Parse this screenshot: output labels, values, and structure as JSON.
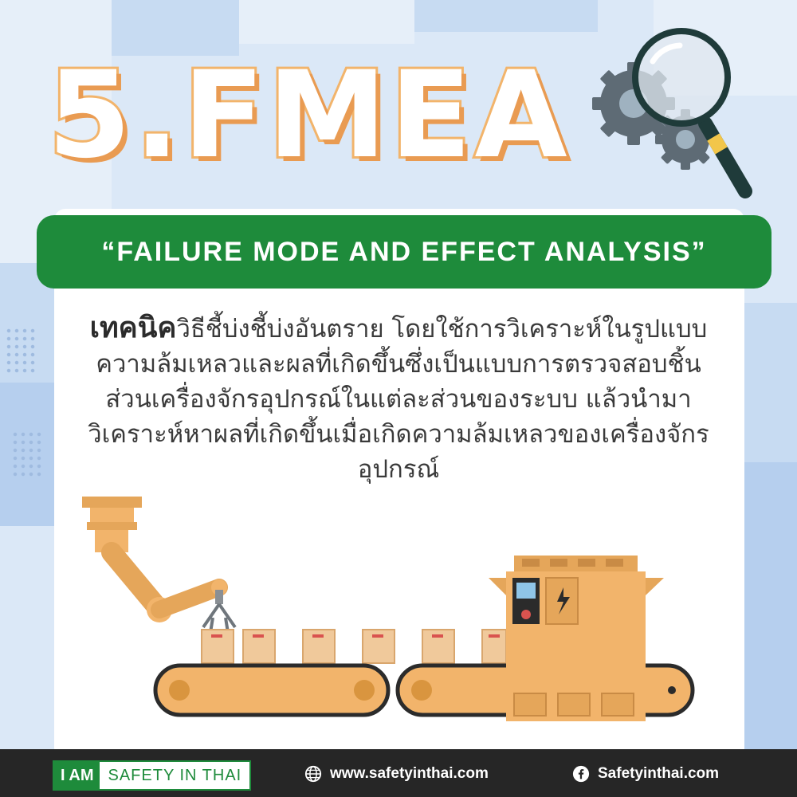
{
  "title": "5.FMEA",
  "banner": "“FAILURE MODE AND EFFECT ANALYSIS”",
  "description": {
    "lead": "เทคนิค",
    "rest": "วิธีชี้บ่งชี้บ่งอันตราย โดยใช้การวิเคราะห์ในรูปแบบความล้มเหลวและผลที่เกิดขึ้นซึ่งเป็นแบบการตรวจสอบชิ้นส่วนเครื่องจักรอุปกรณ์ในแต่ละส่วนของระบบ แล้วนำมาวิเคราะห์หาผลที่เกิดขึ้นเมื่อเกิดความล้มเหลวของเครื่องจักรอุปกรณ์"
  },
  "footer": {
    "brand_left": "I AM",
    "brand_right": "SAFETY IN THAI",
    "website": "www.safetyinthai.com",
    "facebook": "Safetyinthai.com"
  },
  "icons": {
    "globe": "globe-icon",
    "facebook": "facebook-icon",
    "magnifier": "magnifier-gears-icon"
  },
  "colors": {
    "green": "#1e8b3b",
    "orange": "#f2b46b",
    "dark": "#262626",
    "background": "#dbe8f7"
  }
}
